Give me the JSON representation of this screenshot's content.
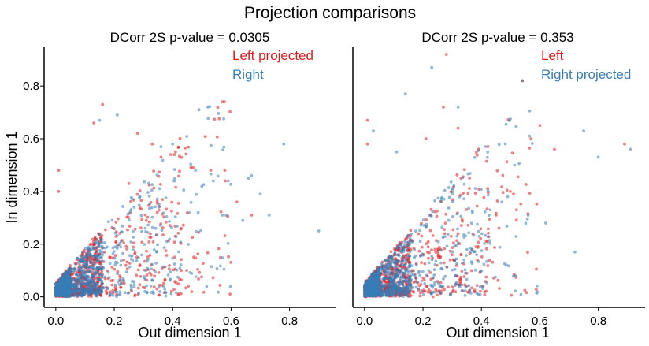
{
  "figure": {
    "title": "Projection comparisons"
  },
  "colors": {
    "red": "#e41a1c",
    "blue": "#377eb8",
    "axis": "#000000"
  },
  "chart_data": [
    {
      "type": "scatter",
      "title": "DCorr 2S p-value = 0.0305",
      "xlabel": "Out dimension 1",
      "ylabel": "In dimension 1",
      "xlim": [
        -0.04,
        0.96
      ],
      "ylim": [
        -0.04,
        0.95
      ],
      "xticks": [
        "0.0",
        "0.2",
        "0.4",
        "0.6",
        "0.8"
      ],
      "yticks": [
        "0.0",
        "0.2",
        "0.4",
        "0.6",
        "0.8"
      ],
      "legend_position": "top-right",
      "series": [
        {
          "name": "Left projected",
          "color": "#e41a1c",
          "n_points": 1200,
          "seed": 11,
          "outliers": [
            [
              0.16,
              0.73
            ],
            [
              0.13,
              0.66
            ],
            [
              0.28,
              0.62
            ],
            [
              0.33,
              0.58
            ],
            [
              0.36,
              0.53
            ],
            [
              0.47,
              0.49
            ],
            [
              0.41,
              0.55
            ],
            [
              0.25,
              0.43
            ],
            [
              0.01,
              0.48
            ],
            [
              0.01,
              0.4
            ],
            [
              0.53,
              0.48
            ],
            [
              0.58,
              0.44
            ],
            [
              0.62,
              0.36
            ],
            [
              0.67,
              0.31
            ],
            [
              0.31,
              0.29
            ]
          ]
        },
        {
          "name": "Right",
          "color": "#377eb8",
          "n_points": 1200,
          "seed": 23,
          "outliers": [
            [
              0.49,
              0.71
            ],
            [
              0.52,
              0.72
            ],
            [
              0.21,
              0.69
            ],
            [
              0.78,
              0.58
            ],
            [
              0.9,
              0.25
            ],
            [
              0.67,
              0.46
            ],
            [
              0.59,
              0.44
            ],
            [
              0.7,
              0.39
            ],
            [
              0.73,
              0.31
            ],
            [
              0.64,
              0.29
            ],
            [
              0.57,
              0.31
            ],
            [
              0.15,
              0.67
            ],
            [
              0.4,
              0.58
            ],
            [
              0.36,
              0.57
            ],
            [
              0.66,
              0.45
            ]
          ]
        }
      ]
    },
    {
      "type": "scatter",
      "title": "DCorr 2S p-value = 0.353",
      "xlabel": "Out dimension 1",
      "ylabel": "",
      "xlim": [
        -0.04,
        0.96
      ],
      "ylim": [
        -0.04,
        0.95
      ],
      "xticks": [
        "0.0",
        "0.2",
        "0.4",
        "0.6",
        "0.8"
      ],
      "yticks": [],
      "legend_position": "top-right",
      "series": [
        {
          "name": "Left",
          "color": "#e41a1c",
          "n_points": 1200,
          "seed": 37,
          "outliers": [
            [
              0.28,
              0.92
            ],
            [
              0.54,
              0.82
            ],
            [
              0.27,
              0.72
            ],
            [
              0.6,
              0.65
            ],
            [
              0.01,
              0.67
            ],
            [
              0.01,
              0.58
            ],
            [
              0.21,
              0.6
            ],
            [
              0.32,
              0.64
            ],
            [
              0.57,
              0.6
            ],
            [
              0.65,
              0.56
            ],
            [
              0.89,
              0.58
            ],
            [
              0.51,
              0.39
            ],
            [
              0.52,
              0.33
            ],
            [
              0.45,
              0.31
            ],
            [
              0.33,
              0.45
            ]
          ]
        },
        {
          "name": "Right projected",
          "color": "#377eb8",
          "n_points": 1200,
          "seed": 53,
          "outliers": [
            [
              0.23,
              0.87
            ],
            [
              0.14,
              0.77
            ],
            [
              0.32,
              0.72
            ],
            [
              0.54,
              0.82
            ],
            [
              0.11,
              0.55
            ],
            [
              0.03,
              0.63
            ],
            [
              0.75,
              0.63
            ],
            [
              0.8,
              0.53
            ],
            [
              0.91,
              0.56
            ],
            [
              0.72,
              0.17
            ],
            [
              0.56,
              0.31
            ],
            [
              0.49,
              0.38
            ],
            [
              0.62,
              0.28
            ],
            [
              0.43,
              0.33
            ],
            [
              0.47,
              0.36
            ]
          ]
        }
      ]
    }
  ]
}
